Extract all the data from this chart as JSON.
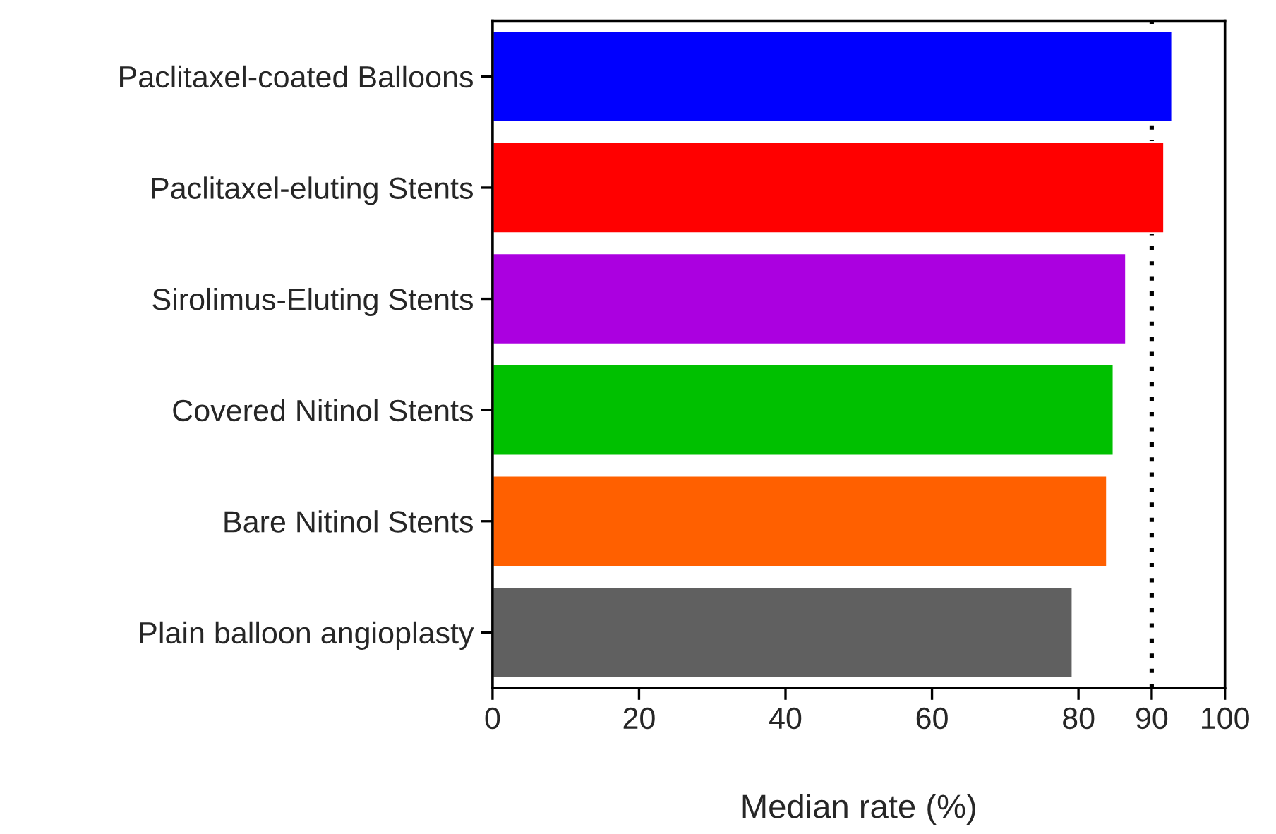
{
  "chart_data": {
    "type": "bar",
    "orientation": "horizontal",
    "xlabel": "Median rate (%)",
    "categories": [
      "Paclitaxel-coated Balloons",
      "Paclitaxel-eluting Stents",
      "Sirolimus-Eluting Stents",
      "Covered Nitinol Stents",
      "Bare Nitinol Stents",
      "Plain balloon angioplasty"
    ],
    "values": [
      92.8,
      91.7,
      86.5,
      84.8,
      83.9,
      79.2
    ],
    "colors": [
      "#0000ff",
      "#ff0000",
      "#ab00e0",
      "#00c000",
      "#ff6000",
      "#606060"
    ],
    "xlim": [
      0,
      100
    ],
    "xticks": [
      0,
      20,
      40,
      60,
      80,
      90,
      100
    ],
    "ref_lines": [
      {
        "axis": "x",
        "value": 90,
        "line_style": "dotted",
        "color": "#000000"
      }
    ],
    "grid": false,
    "legend": false
  }
}
